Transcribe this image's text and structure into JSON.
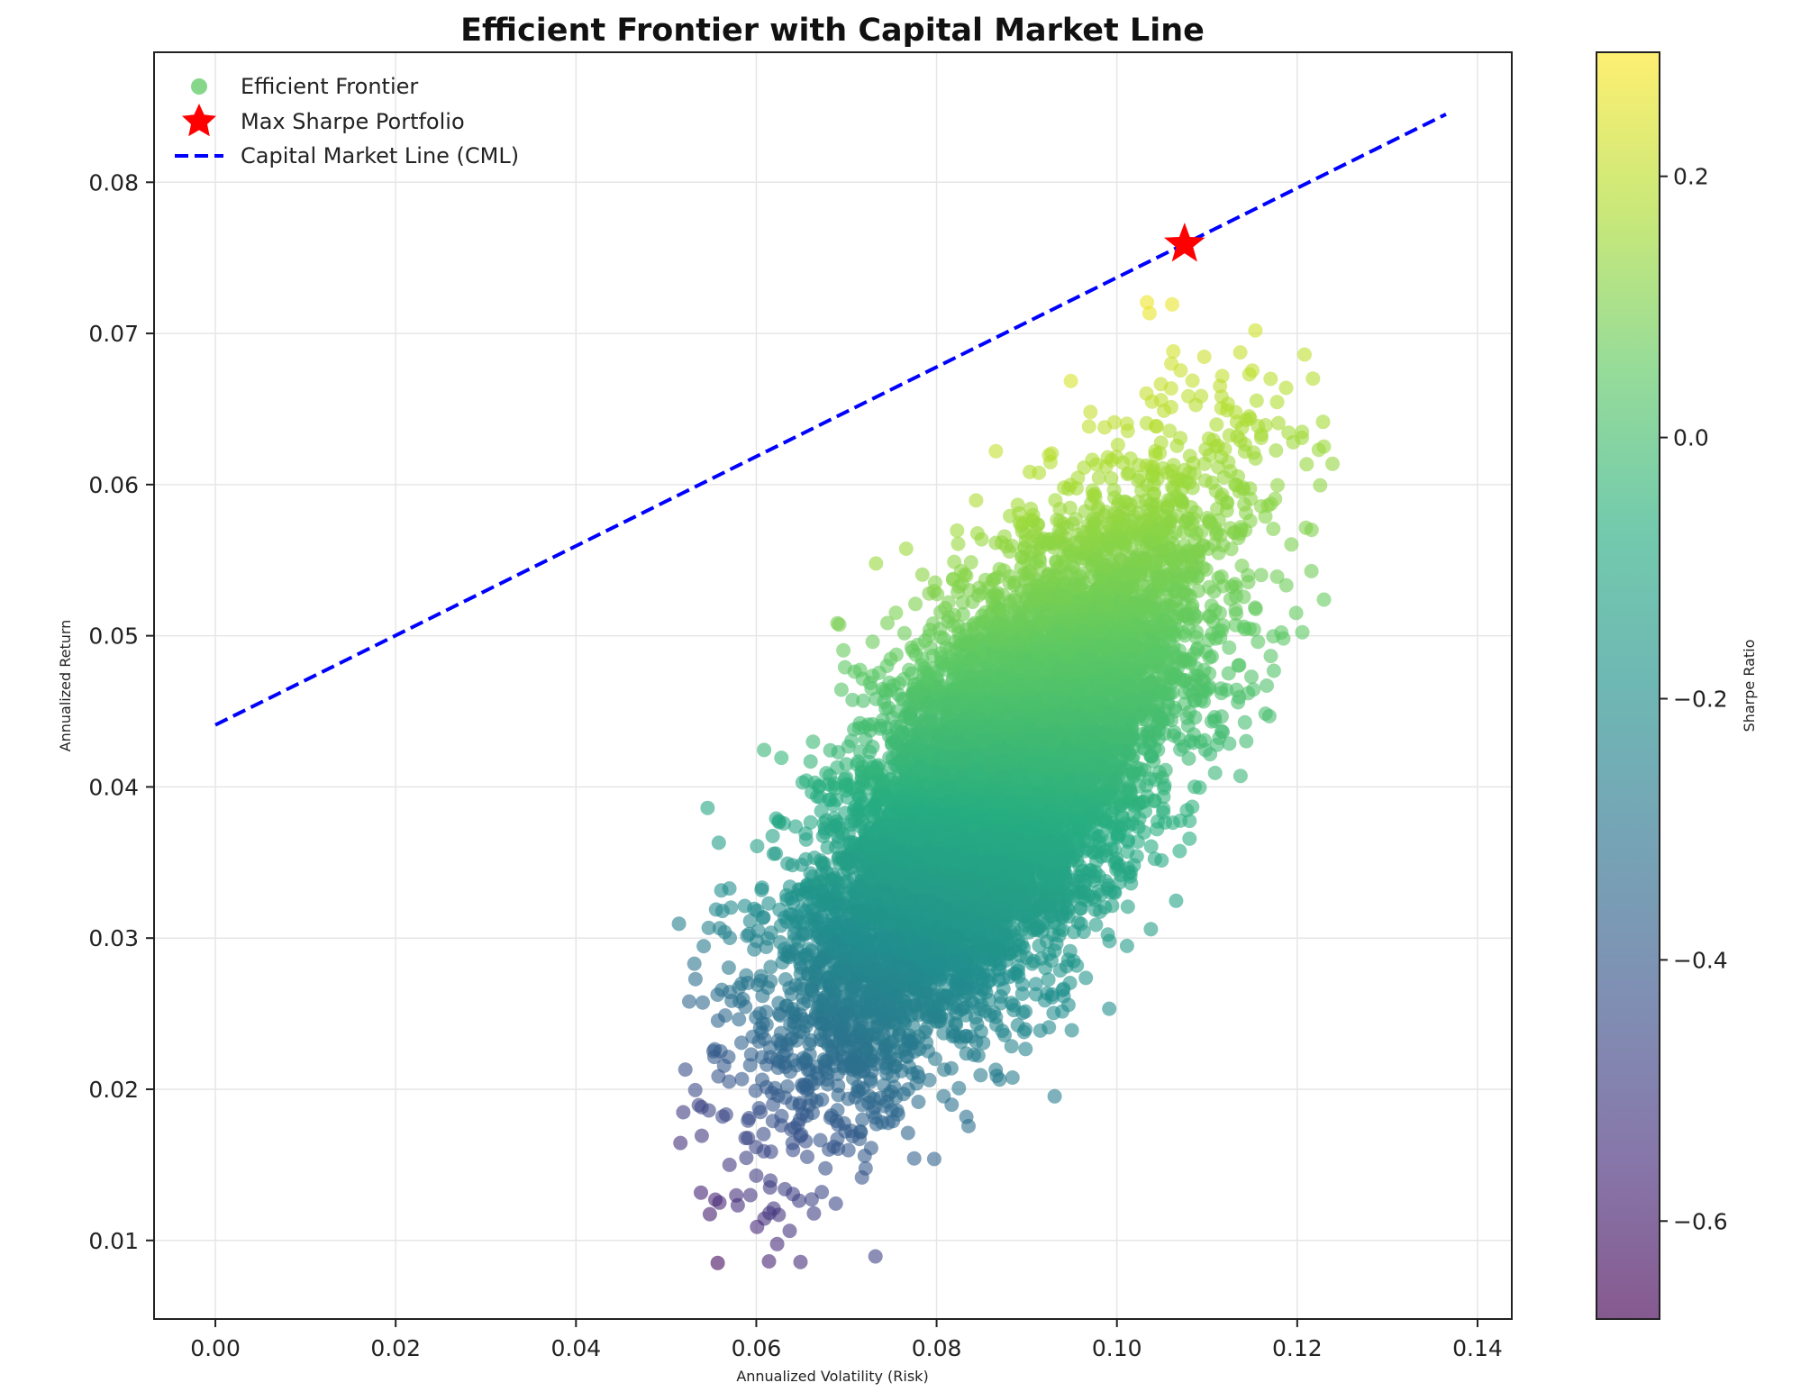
{
  "chart_data": {
    "type": "scatter",
    "title": "Efficient Frontier with Capital Market Line",
    "xlabel": "Annualized Volatility (Risk)",
    "ylabel": "Annualized Return",
    "xlim": [
      -0.0068,
      0.1438
    ],
    "ylim": [
      0.0048,
      0.0886
    ],
    "xticks": [
      0.0,
      0.02,
      0.04,
      0.06,
      0.08,
      0.1,
      0.12,
      0.14
    ],
    "xtick_labels": [
      "0.00",
      "0.02",
      "0.04",
      "0.06",
      "0.08",
      "0.10",
      "0.12",
      "0.14"
    ],
    "yticks": [
      0.01,
      0.02,
      0.03,
      0.04,
      0.05,
      0.06,
      0.07,
      0.08
    ],
    "ytick_labels": [
      "0.01",
      "0.02",
      "0.03",
      "0.04",
      "0.05",
      "0.06",
      "0.07",
      "0.08"
    ],
    "grid": true,
    "legend_position": "top-left",
    "colormap": "viridis",
    "point_alpha": 0.6,
    "series": [
      {
        "name": "Efficient Frontier",
        "kind": "scatter",
        "color": "#5ec962",
        "legend_color": "#5ec962",
        "cloud": {
          "approx_points": 50000,
          "description_of_shape": "elongated ellipse",
          "center": [
            0.087,
            0.04
          ],
          "x_range": [
            0.051,
            0.125
          ],
          "y_range": [
            0.0085,
            0.0721
          ]
        }
      },
      {
        "name": "Max Sharpe Portfolio",
        "kind": "marker",
        "marker": "star",
        "color": "#ff0000",
        "x": 0.1075,
        "y": 0.0759
      },
      {
        "name": "Capital Market Line (CML)",
        "kind": "line",
        "style": "dashed",
        "color": "#0000ff",
        "x": [
          0.0,
          0.1365
        ],
        "y": [
          0.0441,
          0.0845
        ]
      }
    ],
    "colorbar": {
      "label": "Sharpe Ratio",
      "range": [
        -0.675,
        0.295
      ],
      "ticks": [
        0.2,
        0.0,
        -0.2,
        -0.4,
        -0.6
      ],
      "tick_labels": [
        "0.2",
        "0.0",
        "−0.2",
        "−0.4",
        "−0.6"
      ]
    }
  }
}
